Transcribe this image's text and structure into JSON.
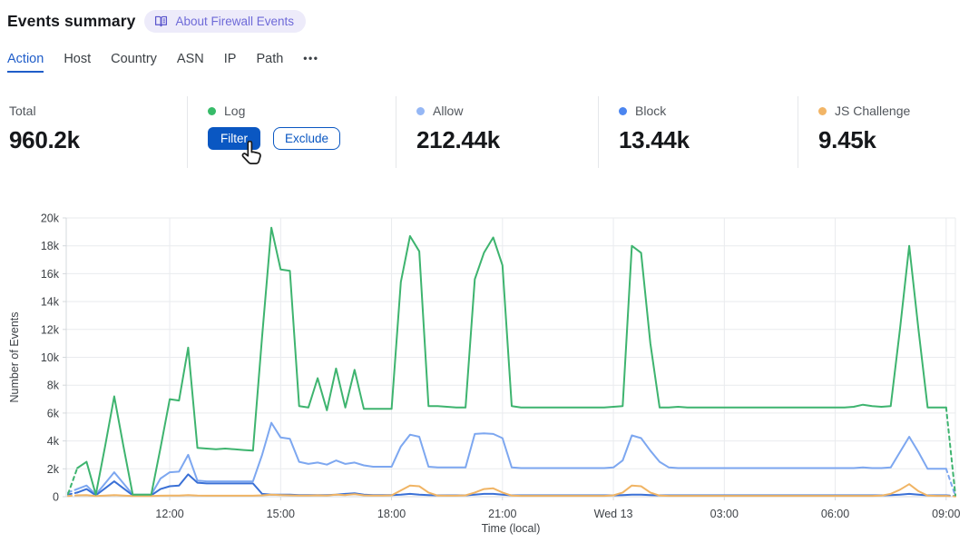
{
  "header": {
    "title": "Events summary",
    "badge": {
      "label": "About Firewall Events",
      "icon": "book-icon"
    }
  },
  "tabs": {
    "items": [
      {
        "label": "Action",
        "active": true
      },
      {
        "label": "Host",
        "active": false
      },
      {
        "label": "Country",
        "active": false
      },
      {
        "label": "ASN",
        "active": false
      },
      {
        "label": "IP",
        "active": false
      },
      {
        "label": "Path",
        "active": false
      }
    ],
    "more_label": "•••"
  },
  "stats": {
    "cards": [
      {
        "label": "Total",
        "value": "960.2k"
      },
      {
        "label": "Log",
        "dot_color": "#37bb69",
        "buttons": [
          {
            "label": "Filter"
          },
          {
            "label": "Exclude"
          }
        ]
      },
      {
        "label": "Allow",
        "dot_color": "#95b7f5",
        "value": "212.44k"
      },
      {
        "label": "Block",
        "dot_color": "#4b85f0",
        "value": "13.44k"
      },
      {
        "label": "JS Challenge",
        "dot_color": "#f2b566",
        "value": "9.45k"
      }
    ]
  },
  "chart_data": {
    "type": "line",
    "xlabel": "Time (local)",
    "ylabel": "Number of Events",
    "unit": "thousands of events",
    "interval_minutes": 15,
    "ylim": [
      0,
      20
    ],
    "grid": true,
    "edge_segments_dashed": true,
    "y_ticks": [
      {
        "label": "0",
        "v": 0
      },
      {
        "label": "2k",
        "v": 2
      },
      {
        "label": "4k",
        "v": 4
      },
      {
        "label": "6k",
        "v": 6
      },
      {
        "label": "8k",
        "v": 8
      },
      {
        "label": "10k",
        "v": 10
      },
      {
        "label": "12k",
        "v": 12
      },
      {
        "label": "14k",
        "v": 14
      },
      {
        "label": "16k",
        "v": 16
      },
      {
        "label": "18k",
        "v": 18
      },
      {
        "label": "20k",
        "v": 20
      }
    ],
    "x_ticks": [
      {
        "label": "12:00",
        "index": 11
      },
      {
        "label": "15:00",
        "index": 23
      },
      {
        "label": "18:00",
        "index": 35
      },
      {
        "label": "21:00",
        "index": 47
      },
      {
        "label": "Wed 13",
        "index": 59
      },
      {
        "label": "03:00",
        "index": 71
      },
      {
        "label": "06:00",
        "index": 83
      },
      {
        "label": "09:00",
        "index": 95
      }
    ],
    "series": [
      {
        "name": "Log",
        "color": "#3eb46f",
        "values": [
          0.2,
          2.05,
          2.5,
          0.15,
          3.6,
          7.2,
          3.6,
          0.15,
          0.15,
          0.15,
          3.5,
          7.0,
          6.9,
          10.7,
          3.5,
          3.45,
          3.4,
          3.45,
          3.4,
          3.35,
          3.3,
          11.5,
          19.3,
          16.3,
          16.2,
          6.5,
          6.4,
          8.5,
          6.2,
          9.2,
          6.4,
          9.1,
          6.3,
          6.3,
          6.3,
          6.3,
          15.4,
          18.7,
          17.6,
          6.5,
          6.5,
          6.45,
          6.4,
          6.4,
          15.6,
          17.5,
          18.6,
          16.6,
          6.5,
          6.4,
          6.4,
          6.4,
          6.4,
          6.4,
          6.4,
          6.4,
          6.4,
          6.4,
          6.4,
          6.45,
          6.5,
          18.0,
          17.5,
          11.0,
          6.4,
          6.4,
          6.45,
          6.4,
          6.4,
          6.4,
          6.4,
          6.4,
          6.4,
          6.4,
          6.4,
          6.4,
          6.4,
          6.4,
          6.4,
          6.4,
          6.4,
          6.4,
          6.4,
          6.4,
          6.4,
          6.45,
          6.6,
          6.5,
          6.45,
          6.5,
          12.0,
          18.0,
          12.0,
          6.4,
          6.4,
          6.4,
          0.1
        ]
      },
      {
        "name": "Allow",
        "color": "#7da7f0",
        "values": [
          0.3,
          0.55,
          0.8,
          0.15,
          0.95,
          1.75,
          0.95,
          0.15,
          0.15,
          0.15,
          1.3,
          1.75,
          1.8,
          3.0,
          1.15,
          1.1,
          1.1,
          1.1,
          1.1,
          1.1,
          1.1,
          3.0,
          5.3,
          4.25,
          4.15,
          2.5,
          2.35,
          2.45,
          2.3,
          2.6,
          2.35,
          2.45,
          2.25,
          2.15,
          2.15,
          2.15,
          3.6,
          4.45,
          4.3,
          2.15,
          2.1,
          2.1,
          2.1,
          2.1,
          4.5,
          4.55,
          4.5,
          4.2,
          2.1,
          2.05,
          2.05,
          2.05,
          2.05,
          2.05,
          2.05,
          2.05,
          2.05,
          2.05,
          2.05,
          2.1,
          2.6,
          4.4,
          4.2,
          3.3,
          2.5,
          2.1,
          2.05,
          2.05,
          2.05,
          2.05,
          2.05,
          2.05,
          2.05,
          2.05,
          2.05,
          2.05,
          2.05,
          2.05,
          2.05,
          2.05,
          2.05,
          2.05,
          2.05,
          2.05,
          2.05,
          2.05,
          2.1,
          2.05,
          2.05,
          2.1,
          3.2,
          4.3,
          3.2,
          2.0,
          2.0,
          2.0,
          0.05
        ]
      },
      {
        "name": "Block",
        "color": "#3a70d6",
        "values": [
          0.15,
          0.3,
          0.55,
          0.1,
          0.6,
          1.1,
          0.6,
          0.1,
          0.1,
          0.1,
          0.55,
          0.75,
          0.8,
          1.6,
          1.0,
          0.95,
          0.95,
          0.95,
          0.95,
          0.95,
          0.95,
          0.2,
          0.15,
          0.15,
          0.15,
          0.12,
          0.12,
          0.12,
          0.12,
          0.15,
          0.2,
          0.25,
          0.15,
          0.12,
          0.12,
          0.12,
          0.15,
          0.2,
          0.15,
          0.12,
          0.1,
          0.1,
          0.1,
          0.1,
          0.15,
          0.2,
          0.2,
          0.15,
          0.1,
          0.1,
          0.1,
          0.1,
          0.1,
          0.1,
          0.1,
          0.1,
          0.1,
          0.1,
          0.1,
          0.1,
          0.12,
          0.15,
          0.15,
          0.12,
          0.1,
          0.1,
          0.1,
          0.1,
          0.1,
          0.1,
          0.1,
          0.1,
          0.1,
          0.1,
          0.1,
          0.1,
          0.1,
          0.1,
          0.1,
          0.1,
          0.1,
          0.1,
          0.1,
          0.1,
          0.1,
          0.1,
          0.1,
          0.1,
          0.1,
          0.12,
          0.15,
          0.2,
          0.15,
          0.1,
          0.1,
          0.1,
          0.05
        ]
      },
      {
        "name": "JS Challenge",
        "color": "#f0b464",
        "values": [
          0.05,
          0.1,
          0.12,
          0.05,
          0.08,
          0.12,
          0.08,
          0.05,
          0.05,
          0.05,
          0.07,
          0.08,
          0.08,
          0.12,
          0.08,
          0.07,
          0.07,
          0.07,
          0.07,
          0.07,
          0.07,
          0.1,
          0.15,
          0.12,
          0.1,
          0.08,
          0.08,
          0.1,
          0.08,
          0.15,
          0.12,
          0.18,
          0.1,
          0.08,
          0.08,
          0.1,
          0.45,
          0.8,
          0.75,
          0.3,
          0.08,
          0.07,
          0.07,
          0.1,
          0.3,
          0.55,
          0.6,
          0.3,
          0.08,
          0.06,
          0.06,
          0.06,
          0.06,
          0.06,
          0.06,
          0.06,
          0.06,
          0.06,
          0.06,
          0.1,
          0.3,
          0.8,
          0.75,
          0.3,
          0.08,
          0.06,
          0.06,
          0.06,
          0.06,
          0.06,
          0.06,
          0.06,
          0.06,
          0.06,
          0.06,
          0.06,
          0.06,
          0.06,
          0.06,
          0.06,
          0.06,
          0.06,
          0.06,
          0.06,
          0.06,
          0.06,
          0.06,
          0.06,
          0.08,
          0.2,
          0.5,
          0.9,
          0.4,
          0.08,
          0.06,
          0.06,
          0.02
        ]
      }
    ]
  },
  "colors": {
    "accent_blue": "#0a57c2",
    "active_tab": "#1f5dc9",
    "badge_bg": "#edebfa",
    "badge_text": "#6e6ad8",
    "gridline": "#e9ebee",
    "axis": "#d4d8dc"
  }
}
